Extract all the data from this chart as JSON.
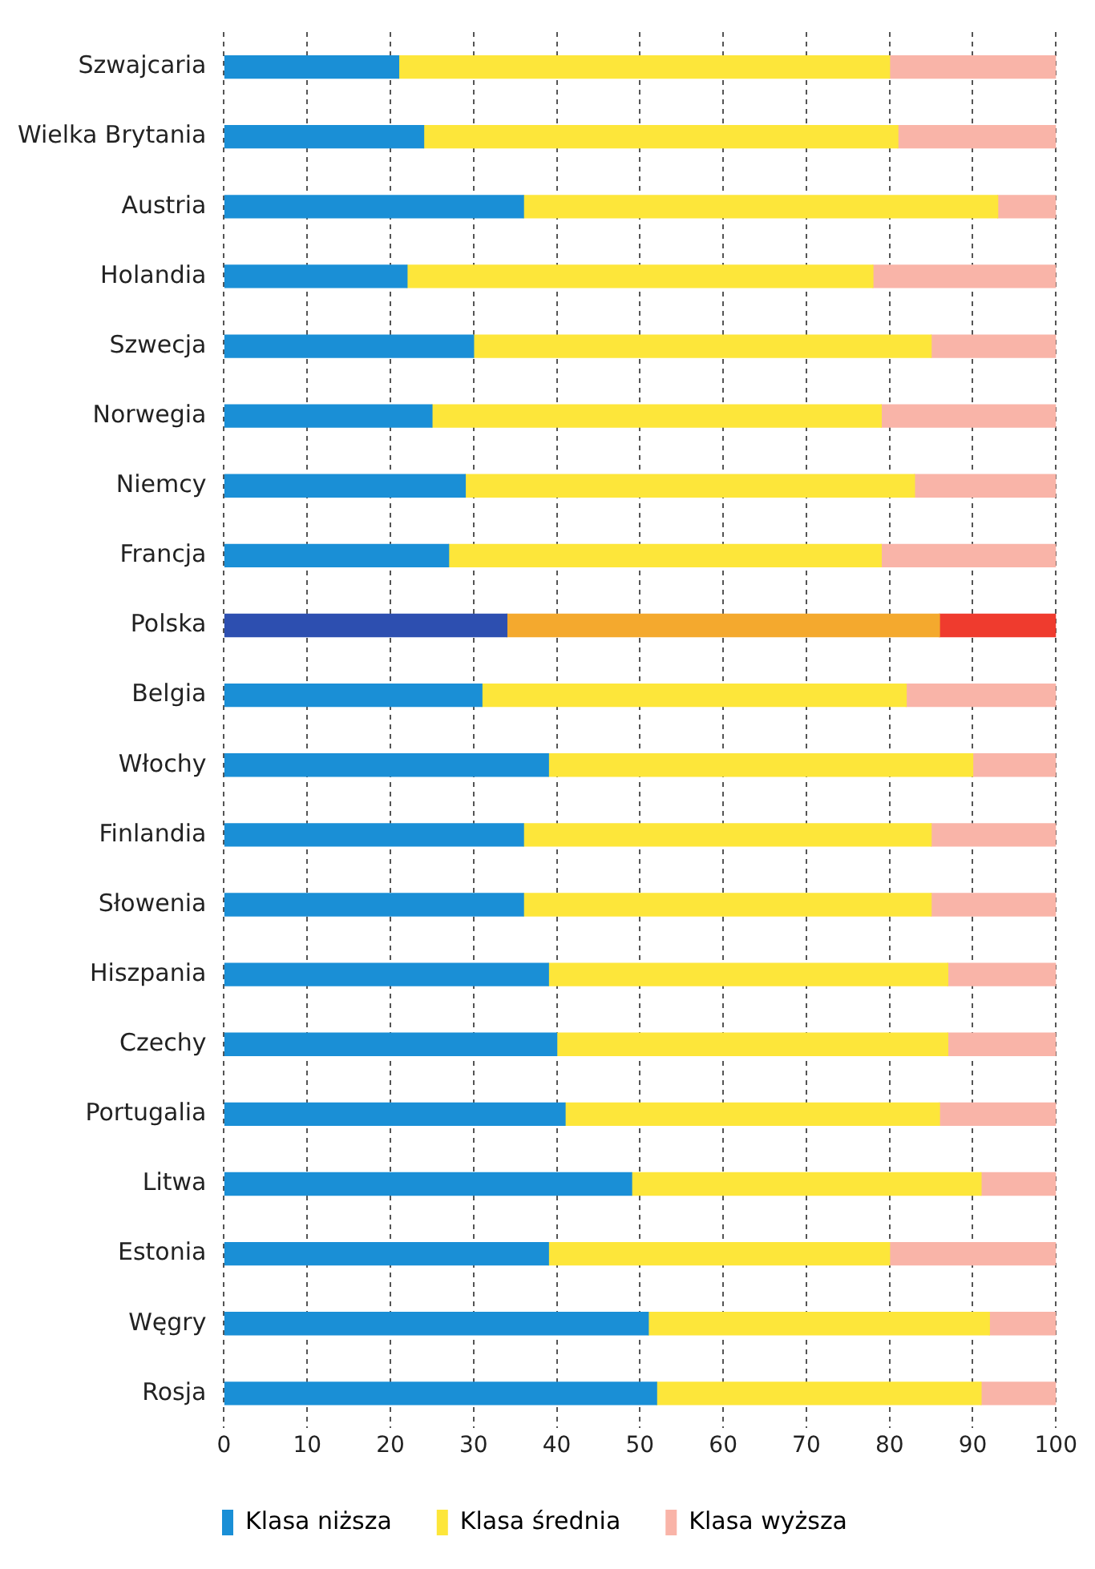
{
  "chart_data": {
    "type": "bar",
    "orientation": "horizontal",
    "stacked": true,
    "categories": [
      "Szwajcaria",
      "Wielka Brytania",
      "Austria",
      "Holandia",
      "Szwecja",
      "Norwegia",
      "Niemcy",
      "Francja",
      "Polska",
      "Belgia",
      "Włochy",
      "Finlandia",
      "Słowenia",
      "Hiszpania",
      "Czechy",
      "Portugalia",
      "Litwa",
      "Estonia",
      "Węgry",
      "Rosja"
    ],
    "series": [
      {
        "name": "Klasa niższa",
        "color": "#1a8fd6",
        "colors": [
          "#1a8fd6",
          "#1a8fd6",
          "#1a8fd6",
          "#1a8fd6",
          "#1a8fd6",
          "#1a8fd6",
          "#1a8fd6",
          "#1a8fd6",
          "#2d4fb0",
          "#1a8fd6",
          "#1a8fd6",
          "#1a8fd6",
          "#1a8fd6",
          "#1a8fd6",
          "#1a8fd6",
          "#1a8fd6",
          "#1a8fd6",
          "#1a8fd6",
          "#1a8fd6",
          "#1a8fd6"
        ],
        "values": [
          21,
          24,
          36,
          22,
          30,
          25,
          29,
          27,
          34,
          31,
          39,
          36,
          36,
          39,
          40,
          41,
          49,
          39,
          51,
          52
        ]
      },
      {
        "name": "Klasa średnia",
        "color": "#fde63a",
        "colors": [
          "#fde63a",
          "#fde63a",
          "#fde63a",
          "#fde63a",
          "#fde63a",
          "#fde63a",
          "#fde63a",
          "#fde63a",
          "#f4a92e",
          "#fde63a",
          "#fde63a",
          "#fde63a",
          "#fde63a",
          "#fde63a",
          "#fde63a",
          "#fde63a",
          "#fde63a",
          "#fde63a",
          "#fde63a",
          "#fde63a"
        ],
        "values": [
          59,
          57,
          57,
          56,
          55,
          54,
          54,
          52,
          52,
          51,
          51,
          49,
          49,
          48,
          47,
          45,
          42,
          41,
          41,
          39
        ]
      },
      {
        "name": "Klasa wyższa",
        "color": "#f9b4a8",
        "colors": [
          "#f9b4a8",
          "#f9b4a8",
          "#f9b4a8",
          "#f9b4a8",
          "#f9b4a8",
          "#f9b4a8",
          "#f9b4a8",
          "#f9b4a8",
          "#ef3b2e",
          "#f9b4a8",
          "#f9b4a8",
          "#f9b4a8",
          "#f9b4a8",
          "#f9b4a8",
          "#f9b4a8",
          "#f9b4a8",
          "#f9b4a8",
          "#f9b4a8",
          "#f9b4a8",
          "#f9b4a8"
        ],
        "values": [
          20,
          19,
          7,
          22,
          15,
          21,
          17,
          21,
          14,
          18,
          10,
          15,
          15,
          13,
          13,
          14,
          9,
          20,
          8,
          9
        ]
      }
    ],
    "xlim": [
      0,
      100
    ],
    "xticks": [
      0,
      10,
      20,
      30,
      40,
      50,
      60,
      70,
      80,
      90,
      100
    ],
    "grid": "x",
    "legend": "bottom"
  }
}
